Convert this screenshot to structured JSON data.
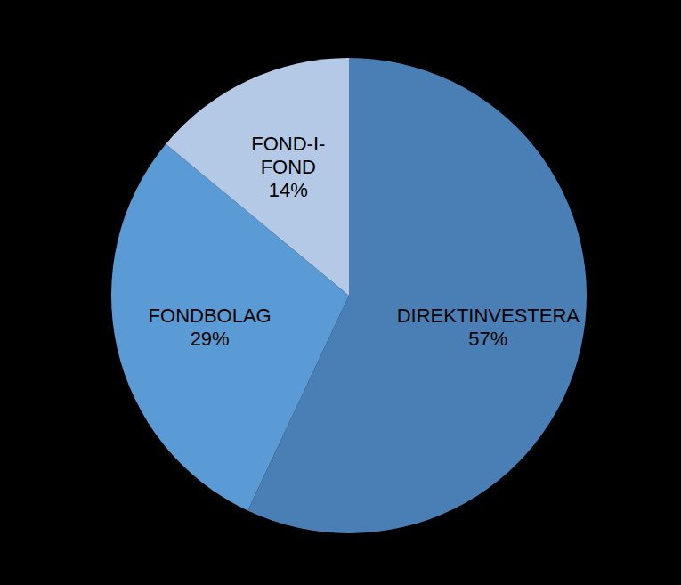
{
  "chart_data": {
    "type": "pie",
    "categories": [
      "DIREKTINVESTERA",
      "FONDBOLAG",
      "FOND-I-FOND"
    ],
    "values": [
      57,
      29,
      14
    ],
    "value_labels": [
      "57%",
      "29%",
      "14%"
    ],
    "colors": [
      "#4a7fb5",
      "#5b9bd5",
      "#b3c9e6"
    ],
    "data_labels": true
  }
}
